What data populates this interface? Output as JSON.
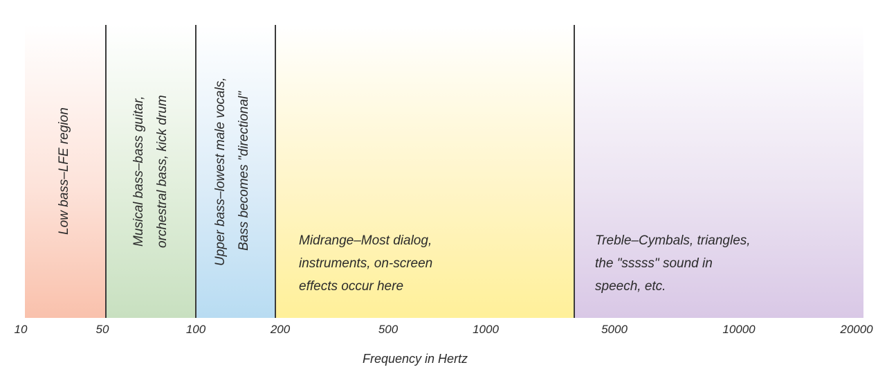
{
  "bands": [
    {
      "name": "low",
      "lines": [
        "Low bass–LFE region"
      ],
      "color": "#f9c1ac"
    },
    {
      "name": "musical",
      "lines": [
        "Musical bass–bass guitar,",
        "orchestral bass, kick drum"
      ],
      "color": "#c8e0c0"
    },
    {
      "name": "upper",
      "lines": [
        "Upper bass–lowest male vocals,",
        "Bass becomes \"directional\""
      ],
      "color": "#b8dcf2"
    },
    {
      "name": "mid",
      "lines": [
        "Midrange–Most dialog,",
        "instruments, on-screen",
        "effects occur here"
      ],
      "color": "#fff099"
    },
    {
      "name": "treble",
      "lines": [
        "Treble–Cymbals, triangles,",
        "the \"sssss\" sound in",
        "speech, etc."
      ],
      "color": "#d9c8e6"
    }
  ],
  "ticks": [
    "10",
    "50",
    "100",
    "200",
    "500",
    "1000",
    "5000",
    "10000",
    "20000"
  ],
  "axis_title": "Frequency in Hertz"
}
